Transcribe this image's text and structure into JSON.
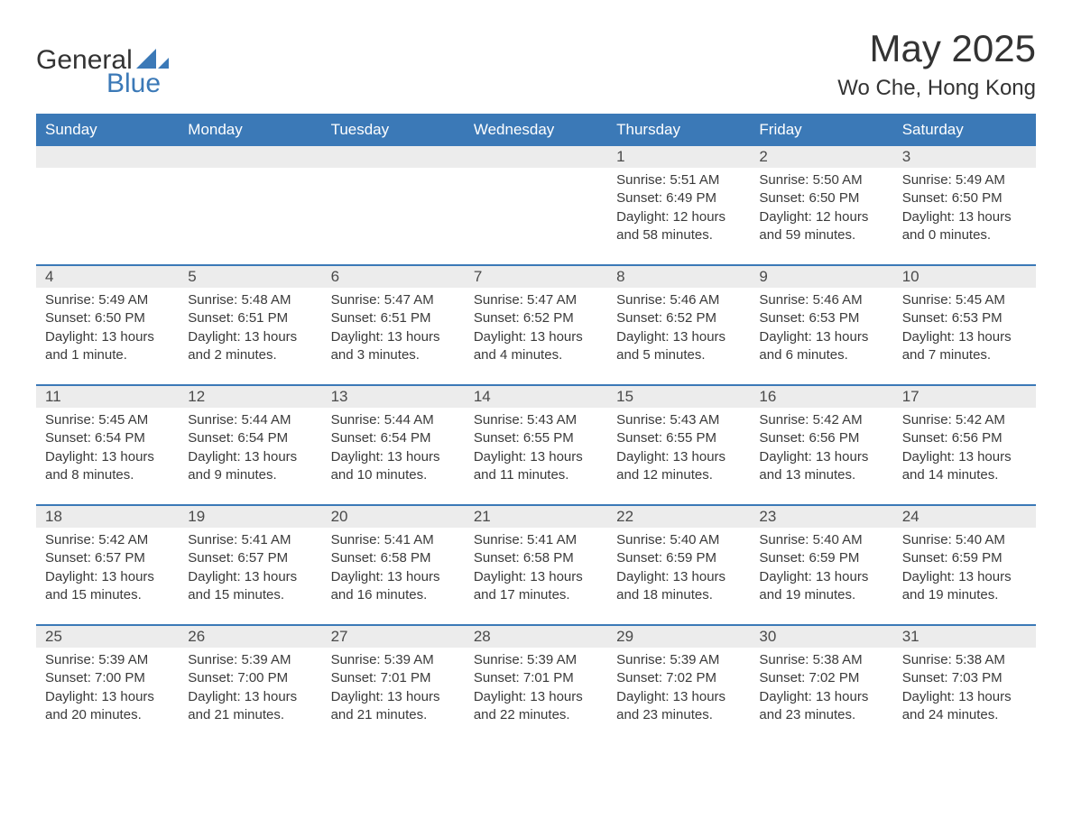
{
  "brand": {
    "word1": "General",
    "word2": "Blue"
  },
  "title": "May 2025",
  "location": "Wo Che, Hong Kong",
  "colors": {
    "accent": "#3b79b7",
    "header_text": "#ffffff",
    "daynum_bg": "#ececec",
    "body_text": "#3a3a3a",
    "background": "#ffffff"
  },
  "typography": {
    "title_fontsize": 42,
    "location_fontsize": 24,
    "dow_fontsize": 17,
    "daynum_fontsize": 17,
    "body_fontsize": 15
  },
  "days_of_week": [
    "Sunday",
    "Monday",
    "Tuesday",
    "Wednesday",
    "Thursday",
    "Friday",
    "Saturday"
  ],
  "weeks": [
    [
      null,
      null,
      null,
      null,
      {
        "n": "1",
        "sunrise": "5:51 AM",
        "sunset": "6:49 PM",
        "daylight": "12 hours and 58 minutes."
      },
      {
        "n": "2",
        "sunrise": "5:50 AM",
        "sunset": "6:50 PM",
        "daylight": "12 hours and 59 minutes."
      },
      {
        "n": "3",
        "sunrise": "5:49 AM",
        "sunset": "6:50 PM",
        "daylight": "13 hours and 0 minutes."
      }
    ],
    [
      {
        "n": "4",
        "sunrise": "5:49 AM",
        "sunset": "6:50 PM",
        "daylight": "13 hours and 1 minute."
      },
      {
        "n": "5",
        "sunrise": "5:48 AM",
        "sunset": "6:51 PM",
        "daylight": "13 hours and 2 minutes."
      },
      {
        "n": "6",
        "sunrise": "5:47 AM",
        "sunset": "6:51 PM",
        "daylight": "13 hours and 3 minutes."
      },
      {
        "n": "7",
        "sunrise": "5:47 AM",
        "sunset": "6:52 PM",
        "daylight": "13 hours and 4 minutes."
      },
      {
        "n": "8",
        "sunrise": "5:46 AM",
        "sunset": "6:52 PM",
        "daylight": "13 hours and 5 minutes."
      },
      {
        "n": "9",
        "sunrise": "5:46 AM",
        "sunset": "6:53 PM",
        "daylight": "13 hours and 6 minutes."
      },
      {
        "n": "10",
        "sunrise": "5:45 AM",
        "sunset": "6:53 PM",
        "daylight": "13 hours and 7 minutes."
      }
    ],
    [
      {
        "n": "11",
        "sunrise": "5:45 AM",
        "sunset": "6:54 PM",
        "daylight": "13 hours and 8 minutes."
      },
      {
        "n": "12",
        "sunrise": "5:44 AM",
        "sunset": "6:54 PM",
        "daylight": "13 hours and 9 minutes."
      },
      {
        "n": "13",
        "sunrise": "5:44 AM",
        "sunset": "6:54 PM",
        "daylight": "13 hours and 10 minutes."
      },
      {
        "n": "14",
        "sunrise": "5:43 AM",
        "sunset": "6:55 PM",
        "daylight": "13 hours and 11 minutes."
      },
      {
        "n": "15",
        "sunrise": "5:43 AM",
        "sunset": "6:55 PM",
        "daylight": "13 hours and 12 minutes."
      },
      {
        "n": "16",
        "sunrise": "5:42 AM",
        "sunset": "6:56 PM",
        "daylight": "13 hours and 13 minutes."
      },
      {
        "n": "17",
        "sunrise": "5:42 AM",
        "sunset": "6:56 PM",
        "daylight": "13 hours and 14 minutes."
      }
    ],
    [
      {
        "n": "18",
        "sunrise": "5:42 AM",
        "sunset": "6:57 PM",
        "daylight": "13 hours and 15 minutes."
      },
      {
        "n": "19",
        "sunrise": "5:41 AM",
        "sunset": "6:57 PM",
        "daylight": "13 hours and 15 minutes."
      },
      {
        "n": "20",
        "sunrise": "5:41 AM",
        "sunset": "6:58 PM",
        "daylight": "13 hours and 16 minutes."
      },
      {
        "n": "21",
        "sunrise": "5:41 AM",
        "sunset": "6:58 PM",
        "daylight": "13 hours and 17 minutes."
      },
      {
        "n": "22",
        "sunrise": "5:40 AM",
        "sunset": "6:59 PM",
        "daylight": "13 hours and 18 minutes."
      },
      {
        "n": "23",
        "sunrise": "5:40 AM",
        "sunset": "6:59 PM",
        "daylight": "13 hours and 19 minutes."
      },
      {
        "n": "24",
        "sunrise": "5:40 AM",
        "sunset": "6:59 PM",
        "daylight": "13 hours and 19 minutes."
      }
    ],
    [
      {
        "n": "25",
        "sunrise": "5:39 AM",
        "sunset": "7:00 PM",
        "daylight": "13 hours and 20 minutes."
      },
      {
        "n": "26",
        "sunrise": "5:39 AM",
        "sunset": "7:00 PM",
        "daylight": "13 hours and 21 minutes."
      },
      {
        "n": "27",
        "sunrise": "5:39 AM",
        "sunset": "7:01 PM",
        "daylight": "13 hours and 21 minutes."
      },
      {
        "n": "28",
        "sunrise": "5:39 AM",
        "sunset": "7:01 PM",
        "daylight": "13 hours and 22 minutes."
      },
      {
        "n": "29",
        "sunrise": "5:39 AM",
        "sunset": "7:02 PM",
        "daylight": "13 hours and 23 minutes."
      },
      {
        "n": "30",
        "sunrise": "5:38 AM",
        "sunset": "7:02 PM",
        "daylight": "13 hours and 23 minutes."
      },
      {
        "n": "31",
        "sunrise": "5:38 AM",
        "sunset": "7:03 PM",
        "daylight": "13 hours and 24 minutes."
      }
    ]
  ],
  "labels": {
    "sunrise": "Sunrise: ",
    "sunset": "Sunset: ",
    "daylight": "Daylight: "
  }
}
